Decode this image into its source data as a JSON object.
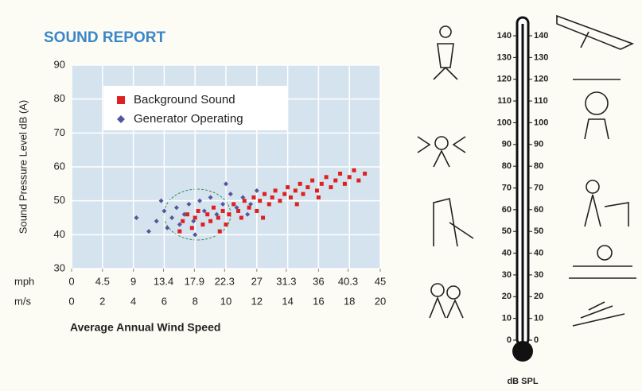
{
  "chart_data": [
    {
      "type": "scatter",
      "title": "SOUND REPORT",
      "y_label": "Sound Pressure Level dB (A)",
      "x_label": "Average Annual Wind Speed",
      "x_unit": "m/s",
      "x2_unit": "mph",
      "xlim": [
        0,
        20
      ],
      "xticks": [
        0,
        2,
        4,
        6,
        8,
        10,
        12,
        14,
        16,
        18,
        20
      ],
      "x2lim": [
        0,
        45
      ],
      "x2ticks": [
        0,
        4.5,
        9,
        13.4,
        17.9,
        22.3,
        27,
        31.3,
        36,
        40.3,
        45
      ],
      "ylim": [
        30,
        90
      ],
      "yticks": [
        30,
        40,
        50,
        60,
        70,
        80,
        90
      ],
      "grid": true,
      "series": [
        {
          "name": "Background Sound",
          "color": "#e02020",
          "marker": "square",
          "x": [
            7.2,
            7.5,
            7.8,
            8.0,
            8.2,
            8.5,
            8.8,
            9.0,
            9.2,
            9.5,
            9.8,
            10.0,
            10.2,
            10.5,
            10.8,
            11.0,
            11.2,
            11.5,
            11.8,
            12.0,
            12.2,
            12.5,
            12.8,
            13.0,
            13.2,
            13.5,
            13.8,
            14.0,
            14.2,
            14.5,
            14.8,
            15.0,
            15.3,
            15.6,
            15.9,
            16.2,
            16.5,
            16.8,
            17.1,
            17.4,
            17.7,
            18.0,
            18.3,
            18.6,
            19.0,
            7.0,
            9.6,
            12.4,
            14.6,
            16.0
          ],
          "values": [
            44,
            46,
            42,
            45,
            47,
            43,
            46,
            44,
            48,
            45,
            47,
            43,
            46,
            49,
            47,
            45,
            50,
            48,
            51,
            47,
            50,
            52,
            49,
            51,
            53,
            50,
            52,
            54,
            51,
            53,
            55,
            52,
            54,
            56,
            53,
            55,
            57,
            54,
            56,
            58,
            55,
            57,
            59,
            56,
            58,
            41,
            41,
            45,
            49,
            51
          ]
        },
        {
          "name": "Generator Operating",
          "color": "#55559a",
          "marker": "diamond",
          "x": [
            4.2,
            5.0,
            5.5,
            6.0,
            6.2,
            6.5,
            6.8,
            7.0,
            7.3,
            7.6,
            7.9,
            8.3,
            8.6,
            9.0,
            9.4,
            9.8,
            10.3,
            10.7,
            11.1,
            11.6,
            12.0,
            5.8,
            8.0,
            10.0,
            11.4
          ],
          "values": [
            45,
            41,
            44,
            47,
            42,
            45,
            48,
            43,
            46,
            49,
            44,
            50,
            47,
            51,
            46,
            49,
            52,
            48,
            51,
            49,
            53,
            50,
            40,
            55,
            46
          ]
        }
      ]
    },
    {
      "type": "thermometer",
      "title": "dB SPL",
      "ylim": [
        0,
        140
      ],
      "yticks": [
        0,
        10,
        20,
        30,
        40,
        50,
        60,
        70,
        80,
        90,
        100,
        110,
        120,
        130,
        140
      ]
    }
  ]
}
